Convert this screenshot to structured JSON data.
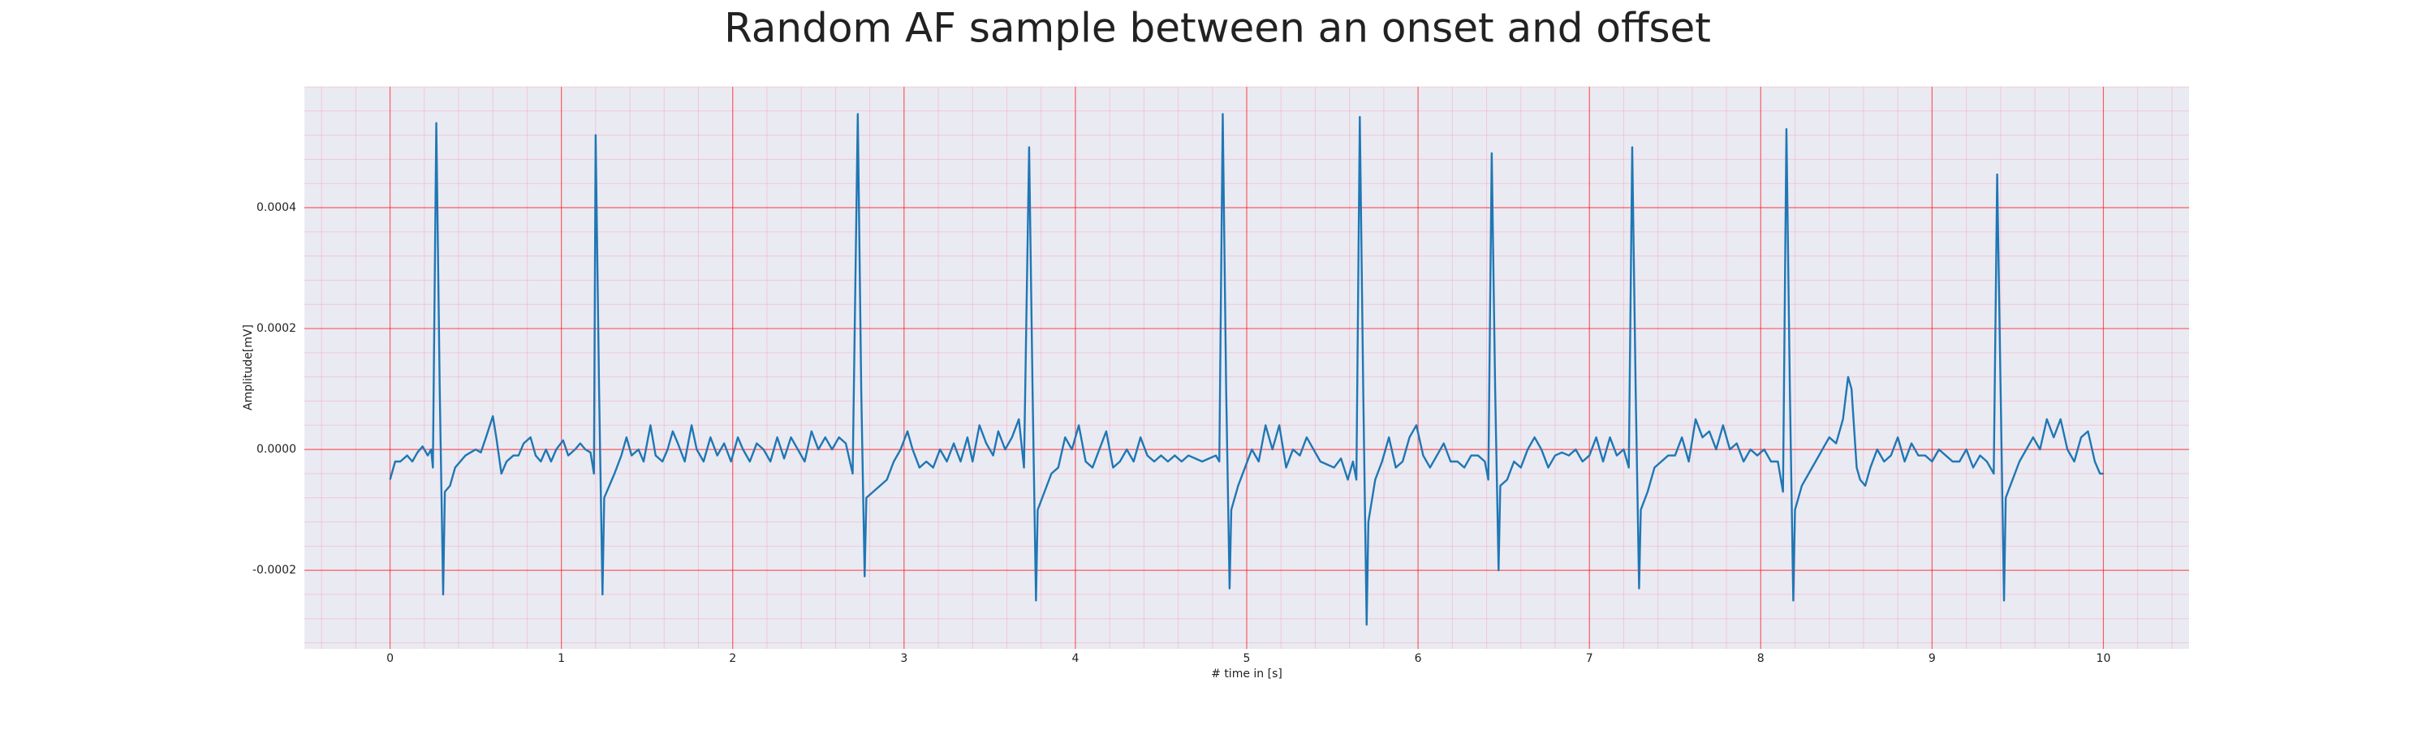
{
  "chart_data": {
    "type": "line",
    "title": "Random AF sample between an onset and offset",
    "x_label": "# time in [s]",
    "y_label": "Amplitude[mV]",
    "color": "#1f77b4",
    "grid": true,
    "minor_grid": true,
    "xlim": [
      -0.5,
      10.5
    ],
    "ylim": [
      -0.00033,
      0.0006
    ],
    "xticks": [
      0,
      1,
      2,
      3,
      4,
      5,
      6,
      7,
      8,
      9,
      10
    ],
    "yticks": [
      -0.0002,
      {
        "value": 0,
        "label": "0.0000"
      },
      0.0002,
      0.0004
    ],
    "x": [
      0.0,
      0.03,
      0.06,
      0.1,
      0.13,
      0.16,
      0.19,
      0.22,
      0.24,
      0.25,
      0.27,
      0.29,
      0.31,
      0.32,
      0.35,
      0.38,
      0.41,
      0.44,
      0.47,
      0.5,
      0.53,
      0.56,
      0.6,
      0.62,
      0.65,
      0.68,
      0.72,
      0.75,
      0.78,
      0.82,
      0.85,
      0.88,
      0.91,
      0.94,
      0.97,
      1.01,
      1.04,
      1.08,
      1.11,
      1.14,
      1.17,
      1.19,
      1.2,
      1.22,
      1.24,
      1.25,
      1.28,
      1.31,
      1.35,
      1.38,
      1.41,
      1.45,
      1.48,
      1.52,
      1.55,
      1.59,
      1.62,
      1.65,
      1.68,
      1.72,
      1.76,
      1.79,
      1.83,
      1.87,
      1.91,
      1.95,
      1.99,
      2.03,
      2.06,
      2.1,
      2.14,
      2.18,
      2.22,
      2.26,
      2.3,
      2.34,
      2.38,
      2.42,
      2.46,
      2.5,
      2.54,
      2.58,
      2.62,
      2.66,
      2.7,
      2.73,
      2.75,
      2.77,
      2.78,
      2.82,
      2.86,
      2.9,
      2.94,
      2.98,
      3.02,
      3.05,
      3.09,
      3.13,
      3.17,
      3.21,
      3.25,
      3.29,
      3.33,
      3.37,
      3.4,
      3.44,
      3.48,
      3.52,
      3.55,
      3.59,
      3.63,
      3.67,
      3.7,
      3.73,
      3.75,
      3.77,
      3.78,
      3.82,
      3.86,
      3.9,
      3.94,
      3.98,
      4.02,
      4.06,
      4.1,
      4.14,
      4.18,
      4.22,
      4.26,
      4.3,
      4.34,
      4.38,
      4.42,
      4.46,
      4.5,
      4.54,
      4.58,
      4.62,
      4.66,
      4.7,
      4.74,
      4.78,
      4.82,
      4.84,
      4.86,
      4.88,
      4.9,
      4.91,
      4.95,
      4.99,
      5.03,
      5.07,
      5.11,
      5.15,
      5.19,
      5.23,
      5.27,
      5.31,
      5.35,
      5.39,
      5.43,
      5.47,
      5.51,
      5.55,
      5.59,
      5.62,
      5.64,
      5.66,
      5.68,
      5.7,
      5.71,
      5.75,
      5.79,
      5.83,
      5.87,
      5.91,
      5.95,
      5.99,
      6.03,
      6.07,
      6.11,
      6.15,
      6.19,
      6.23,
      6.27,
      6.31,
      6.35,
      6.39,
      6.41,
      6.43,
      6.45,
      6.47,
      6.48,
      6.52,
      6.56,
      6.6,
      6.64,
      6.68,
      6.72,
      6.76,
      6.8,
      6.84,
      6.88,
      6.92,
      6.96,
      7.0,
      7.04,
      7.08,
      7.12,
      7.16,
      7.2,
      7.23,
      7.25,
      7.27,
      7.29,
      7.3,
      7.34,
      7.38,
      7.42,
      7.46,
      7.5,
      7.54,
      7.58,
      7.62,
      7.66,
      7.7,
      7.74,
      7.78,
      7.82,
      7.86,
      7.9,
      7.94,
      7.98,
      8.02,
      8.06,
      8.1,
      8.13,
      8.15,
      8.17,
      8.19,
      8.2,
      8.24,
      8.28,
      8.32,
      8.36,
      8.4,
      8.44,
      8.48,
      8.51,
      8.53,
      8.56,
      8.58,
      8.61,
      8.64,
      8.68,
      8.72,
      8.76,
      8.8,
      8.84,
      8.88,
      8.92,
      8.96,
      9.0,
      9.04,
      9.08,
      9.12,
      9.16,
      9.2,
      9.24,
      9.28,
      9.32,
      9.36,
      9.38,
      9.4,
      9.42,
      9.43,
      9.47,
      9.51,
      9.55,
      9.59,
      9.63,
      9.67,
      9.71,
      9.75,
      9.79,
      9.83,
      9.87,
      9.91,
      9.95,
      9.98,
      10.0
    ],
    "values": [
      -5e-05,
      -2e-05,
      -2e-05,
      -1e-05,
      -2e-05,
      -5e-06,
      5e-06,
      -1e-05,
      0.0,
      -3e-05,
      0.00054,
      0.0001,
      -0.00024,
      -7e-05,
      -6e-05,
      -3e-05,
      -2e-05,
      -1e-05,
      -5e-06,
      0.0,
      -5e-06,
      2e-05,
      5.5e-05,
      2e-05,
      -4e-05,
      -2e-05,
      -1e-05,
      -1e-05,
      1e-05,
      2e-05,
      -1e-05,
      -2e-05,
      0.0,
      -2e-05,
      0.0,
      1.5e-05,
      -1e-05,
      0.0,
      1e-05,
      0.0,
      -5e-06,
      -4e-05,
      0.00052,
      0.0001,
      -0.00024,
      -8e-05,
      -6e-05,
      -4e-05,
      -1e-05,
      2e-05,
      -1e-05,
      0.0,
      -2e-05,
      4e-05,
      -1e-05,
      -2e-05,
      0.0,
      3e-05,
      1e-05,
      -2e-05,
      4e-05,
      0.0,
      -2e-05,
      2e-05,
      -1e-05,
      1e-05,
      -2e-05,
      2e-05,
      0.0,
      -2e-05,
      1e-05,
      0.0,
      -2e-05,
      2e-05,
      -1.5e-05,
      2e-05,
      0.0,
      -2e-05,
      3e-05,
      0.0,
      2e-05,
      0.0,
      2e-05,
      1e-05,
      -4e-05,
      0.000555,
      0.0001,
      -0.00021,
      -8e-05,
      -7e-05,
      -6e-05,
      -5e-05,
      -2e-05,
      0.0,
      3e-05,
      0.0,
      -3e-05,
      -2e-05,
      -3e-05,
      0.0,
      -2e-05,
      1e-05,
      -2e-05,
      2e-05,
      -2e-05,
      4e-05,
      1e-05,
      -1e-05,
      3e-05,
      0.0,
      2e-05,
      5e-05,
      -3e-05,
      0.0005,
      0.0001,
      -0.00025,
      -0.0001,
      -7e-05,
      -4e-05,
      -3e-05,
      2e-05,
      0.0,
      4e-05,
      -2e-05,
      -3e-05,
      0.0,
      3e-05,
      -3e-05,
      -2e-05,
      0.0,
      -2e-05,
      2e-05,
      -1e-05,
      -2e-05,
      -1e-05,
      -2e-05,
      -1e-05,
      -2e-05,
      -1e-05,
      -1.5e-05,
      -2e-05,
      -1.5e-05,
      -1e-05,
      -2e-05,
      0.000555,
      0.0001,
      -0.00023,
      -0.0001,
      -6e-05,
      -3e-05,
      0.0,
      -2e-05,
      4e-05,
      0.0,
      4e-05,
      -3e-05,
      0.0,
      -1e-05,
      2e-05,
      0.0,
      -2e-05,
      -2.5e-05,
      -3e-05,
      -1.5e-05,
      -5e-05,
      -2e-05,
      -5e-05,
      0.00055,
      0.0001,
      -0.00029,
      -0.00012,
      -5e-05,
      -2e-05,
      2e-05,
      -3e-05,
      -2e-05,
      2e-05,
      4e-05,
      -1e-05,
      -3e-05,
      -1e-05,
      1e-05,
      -2e-05,
      -2e-05,
      -3e-05,
      -1e-05,
      -1e-05,
      -2e-05,
      -5e-05,
      0.00049,
      0.0001,
      -0.0002,
      -6e-05,
      -5e-05,
      -2e-05,
      -3e-05,
      0.0,
      2e-05,
      0.0,
      -3e-05,
      -1e-05,
      -5e-06,
      -1e-05,
      0.0,
      -2e-05,
      -1e-05,
      2e-05,
      -2e-05,
      2e-05,
      -1e-05,
      0.0,
      -3e-05,
      0.0005,
      0.0001,
      -0.00023,
      -0.0001,
      -7e-05,
      -3e-05,
      -2e-05,
      -1e-05,
      -1e-05,
      2e-05,
      -2e-05,
      5e-05,
      2e-05,
      3e-05,
      0.0,
      4e-05,
      0.0,
      1e-05,
      -2e-05,
      0.0,
      -1e-05,
      0.0,
      -2e-05,
      -2e-05,
      -7e-05,
      0.00053,
      0.0001,
      -0.00025,
      -0.0001,
      -6e-05,
      -4e-05,
      -2e-05,
      0.0,
      2e-05,
      1e-05,
      5e-05,
      0.00012,
      0.0001,
      -3e-05,
      -5e-05,
      -6e-05,
      -3e-05,
      0.0,
      -2e-05,
      -1e-05,
      2e-05,
      -2e-05,
      1e-05,
      -1e-05,
      -1e-05,
      -2e-05,
      0.0,
      -1e-05,
      -2e-05,
      -2e-05,
      0.0,
      -3e-05,
      -1e-05,
      -2e-05,
      -4e-05,
      0.000455,
      0.0001,
      -0.00025,
      -8e-05,
      -5e-05,
      -2e-05,
      0.0,
      2e-05,
      0.0,
      5e-05,
      2e-05,
      5e-05,
      0.0,
      -2e-05,
      2e-05,
      3e-05,
      -2e-05,
      -4e-05,
      -4e-05
    ]
  }
}
